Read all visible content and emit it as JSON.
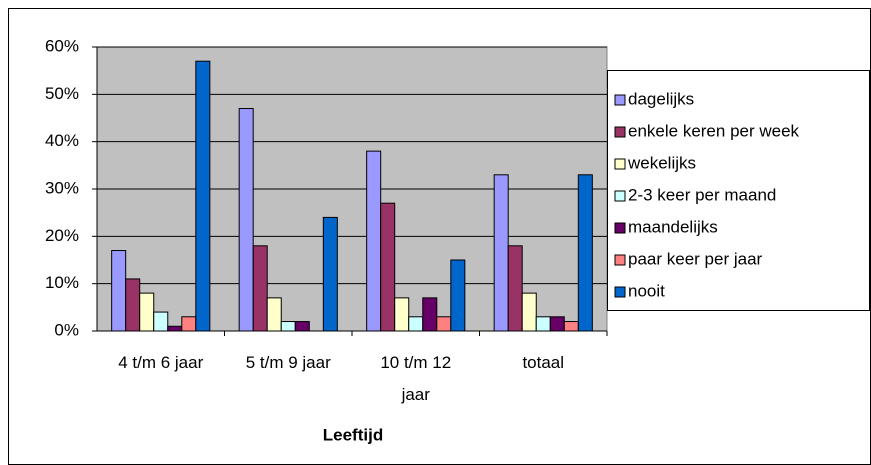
{
  "chart_data": {
    "type": "bar",
    "x_label": "Leeftijd",
    "categories": [
      "4 t/m 6 jaar",
      "5 t/m 9 jaar",
      "10 t/m 12 jaar",
      "totaal"
    ],
    "series": [
      {
        "name": "dagelijks",
        "color": "#9999ff",
        "values": [
          17,
          47,
          38,
          33
        ]
      },
      {
        "name": "enkele keren per week",
        "color": "#993366",
        "values": [
          11,
          18,
          27,
          18
        ]
      },
      {
        "name": "wekelijks",
        "color": "#ffffcc",
        "values": [
          8,
          7,
          7,
          8
        ]
      },
      {
        "name": "2-3 keer per maand",
        "color": "#ccffff",
        "values": [
          4,
          2,
          3,
          3
        ]
      },
      {
        "name": "maandelijks",
        "color": "#660066",
        "values": [
          1,
          2,
          7,
          3
        ]
      },
      {
        "name": "paar keer per jaar",
        "color": "#ff8080",
        "values": [
          3,
          0,
          3,
          2
        ]
      },
      {
        "name": "nooit",
        "color": "#0066cc",
        "values": [
          57,
          24,
          15,
          33
        ]
      }
    ],
    "ylim": [
      0,
      60
    ],
    "yticks": [
      {
        "value": 0,
        "label": "0%"
      },
      {
        "value": 10,
        "label": "10%"
      },
      {
        "value": 20,
        "label": "20%"
      },
      {
        "value": 30,
        "label": "30%"
      },
      {
        "value": 40,
        "label": "40%"
      },
      {
        "value": 50,
        "label": "50%"
      },
      {
        "value": 60,
        "label": "60%"
      }
    ],
    "grid": true,
    "legend": "right",
    "plot_background": "#c0c0c0"
  }
}
